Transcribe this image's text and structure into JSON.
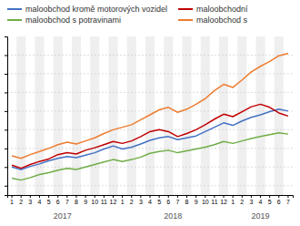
{
  "chart_data": {
    "type": "line",
    "categories": [
      "1",
      "2",
      "3",
      "4",
      "5",
      "6",
      "7",
      "8",
      "9",
      "10",
      "11",
      "12",
      "1",
      "2",
      "3",
      "4",
      "5",
      "6",
      "7",
      "8",
      "9",
      "10",
      "11",
      "12",
      "1",
      "2",
      "3",
      "4",
      "5",
      "6",
      "7"
    ],
    "annotations": [
      "2017",
      "2018",
      "2019"
    ],
    "series": [
      {
        "name": "maloobchod kromě motorových vozidel",
        "color": "#4472c4",
        "values": [
          100.0,
          99.6,
          100.1,
          100.5,
          101.0,
          101.4,
          101.7,
          101.5,
          101.9,
          102.3,
          102.9,
          103.4,
          102.9,
          103.2,
          103.7,
          104.3,
          104.7,
          104.9,
          104.4,
          104.7,
          105.0,
          105.7,
          106.4,
          107.1,
          106.7,
          107.4,
          108.0,
          108.4,
          108.9,
          109.3,
          109.0
        ]
      },
      {
        "name": "maloobchodní",
        "color": "#c00000",
        "values": [
          100.3,
          99.8,
          100.4,
          100.9,
          101.3,
          102.0,
          102.3,
          102.1,
          102.7,
          103.1,
          103.6,
          104.1,
          103.8,
          104.2,
          104.9,
          105.7,
          106.0,
          105.7,
          104.9,
          105.4,
          106.0,
          106.8,
          107.7,
          108.5,
          108.1,
          108.9,
          109.7,
          110.1,
          109.6,
          108.7,
          108.2
        ]
      },
      {
        "name": "maloobchod s potravinami",
        "color": "#70ad47",
        "values": [
          98.2,
          97.9,
          98.3,
          98.8,
          99.1,
          99.5,
          99.8,
          99.6,
          100.0,
          100.4,
          100.8,
          101.2,
          100.9,
          101.2,
          101.6,
          102.2,
          102.5,
          102.7,
          102.3,
          102.6,
          102.9,
          103.2,
          103.6,
          104.1,
          103.8,
          104.2,
          104.6,
          104.9,
          105.2,
          105.5,
          105.3
        ]
      },
      {
        "name": "maloobchod s",
        "color": "#ed7d31",
        "values": [
          101.8,
          101.4,
          102.0,
          102.5,
          103.0,
          103.6,
          104.0,
          103.7,
          104.2,
          104.7,
          105.4,
          106.0,
          106.4,
          106.8,
          107.6,
          108.4,
          109.2,
          109.6,
          108.8,
          109.3,
          110.1,
          111.0,
          112.3,
          113.3,
          112.8,
          114.0,
          115.3,
          116.2,
          117.0,
          117.9,
          118.3
        ]
      }
    ],
    "ylim": [
      95.5,
      121
    ],
    "yticks": [
      97,
      100,
      103,
      106,
      109,
      112,
      115,
      118
    ],
    "grid": true,
    "tick_labels": "x",
    "legend": "top"
  }
}
